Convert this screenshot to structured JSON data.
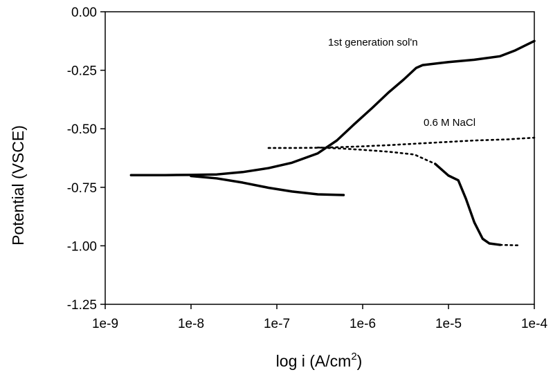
{
  "chart_data": {
    "type": "line",
    "title": "",
    "xlabel": "log i (A/cm",
    "xlabel_sup": "2",
    "xlabel_tail": ")",
    "ylabel": "Potential (VSCE)",
    "x_scale": "log",
    "xlim": [
      1e-09,
      0.0001
    ],
    "ylim": [
      -1.25,
      0.0
    ],
    "x_ticks": [
      1e-09,
      1e-08,
      1e-07,
      1e-06,
      1e-05,
      0.0001
    ],
    "x_tick_labels": [
      "1e-9",
      "1e-8",
      "1e-7",
      "1e-6",
      "1e-5",
      "1e-4"
    ],
    "y_ticks": [
      0.0,
      -0.25,
      -0.5,
      -0.75,
      -1.0,
      -1.25
    ],
    "y_tick_labels": [
      "0.00",
      "-0.25",
      "-0.50",
      "-0.75",
      "-1.00",
      "-1.25"
    ],
    "grid": false,
    "legend": "none",
    "annotations": [
      "1st generation sol'n",
      "0.6 M NaCl"
    ],
    "series": [
      {
        "name": "1st generation sol'n",
        "style": "solid",
        "color": "#000000",
        "segments": [
          [
            [
              2e-09,
              -0.698
            ],
            [
              5e-09,
              -0.698
            ],
            [
              1e-08,
              -0.697
            ],
            [
              2e-08,
              -0.695
            ],
            [
              4e-08,
              -0.685
            ],
            [
              8e-08,
              -0.668
            ],
            [
              1.5e-07,
              -0.645
            ],
            [
              3e-07,
              -0.605
            ],
            [
              5e-07,
              -0.55
            ],
            [
              8e-07,
              -0.48
            ],
            [
              1.3e-06,
              -0.41
            ],
            [
              2e-06,
              -0.345
            ],
            [
              3e-06,
              -0.29
            ],
            [
              4.2e-06,
              -0.24
            ],
            [
              5e-06,
              -0.228
            ],
            [
              1e-05,
              -0.215
            ],
            [
              2e-05,
              -0.205
            ],
            [
              4e-05,
              -0.19
            ],
            [
              6e-05,
              -0.165
            ],
            [
              0.0001,
              -0.125
            ]
          ],
          [
            [
              1e-08,
              -0.702
            ],
            [
              2e-08,
              -0.712
            ],
            [
              4e-08,
              -0.73
            ],
            [
              8e-08,
              -0.752
            ],
            [
              1.5e-07,
              -0.768
            ],
            [
              3e-07,
              -0.78
            ],
            [
              6e-07,
              -0.783
            ]
          ]
        ]
      },
      {
        "name": "0.6 M NaCl",
        "style": "dotted",
        "color": "#000000",
        "segments": [
          [
            [
              8e-08,
              -0.582
            ],
            [
              1.5e-07,
              -0.582
            ],
            [
              3e-07,
              -0.581
            ],
            [
              6e-07,
              -0.578
            ],
            [
              1e-06,
              -0.575
            ],
            [
              2e-06,
              -0.57
            ],
            [
              5e-06,
              -0.562
            ],
            [
              1e-05,
              -0.556
            ],
            [
              2e-05,
              -0.55
            ],
            [
              5e-05,
              -0.545
            ],
            [
              0.0001,
              -0.538
            ]
          ],
          [
            [
              3e-07,
              -0.58
            ],
            [
              6e-07,
              -0.585
            ],
            [
              1e-06,
              -0.59
            ],
            [
              2e-06,
              -0.598
            ],
            [
              4e-06,
              -0.61
            ],
            [
              7e-06,
              -0.65
            ]
          ]
        ]
      },
      {
        "name": "0.6 M NaCl (solid branch)",
        "style": "solid",
        "color": "#000000",
        "segments": [
          [
            [
              7e-06,
              -0.65
            ],
            [
              1e-05,
              -0.7
            ],
            [
              1.3e-05,
              -0.72
            ],
            [
              1.6e-05,
              -0.8
            ],
            [
              2e-05,
              -0.9
            ],
            [
              2.5e-05,
              -0.97
            ],
            [
              3e-05,
              -0.99
            ],
            [
              4e-05,
              -0.996
            ]
          ]
        ]
      },
      {
        "name": "0.6 M NaCl (dotted tail)",
        "style": "dotted",
        "color": "#000000",
        "segments": [
          [
            [
              4e-05,
              -0.996
            ],
            [
              6.5e-05,
              -0.998
            ]
          ]
        ]
      }
    ]
  }
}
